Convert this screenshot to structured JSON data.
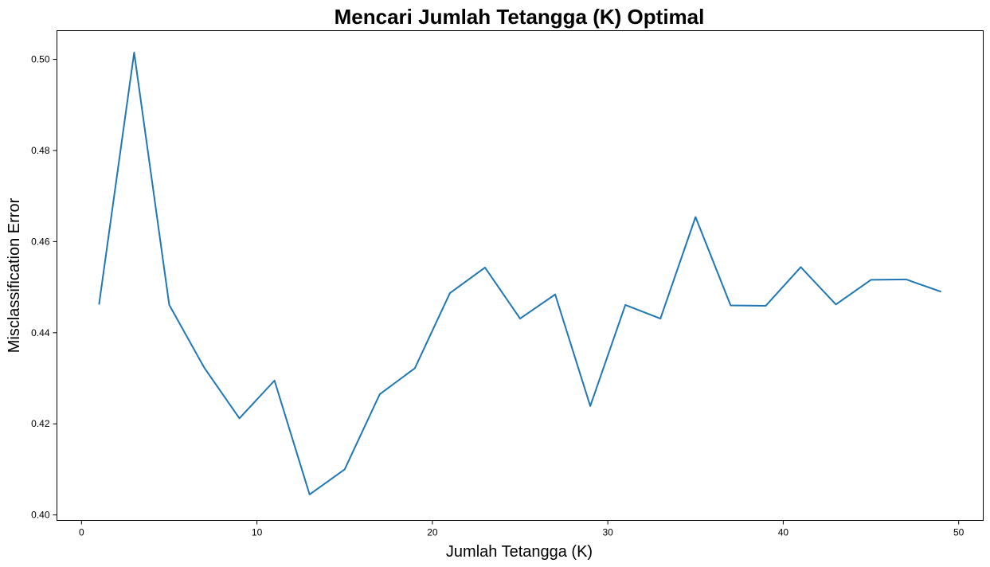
{
  "chart_data": {
    "type": "line",
    "title": "Mencari Jumlah Tetangga (K) Optimal",
    "xlabel": "Jumlah Tetangga (K)",
    "ylabel": "Misclassification Error",
    "xlim": [
      -1.4,
      51.4
    ],
    "ylim": [
      0.3988,
      0.5063
    ],
    "xticks": [
      0,
      10,
      20,
      30,
      40,
      50
    ],
    "yticks": [
      0.4,
      0.42,
      0.44,
      0.46,
      0.48,
      0.5
    ],
    "xtick_labels": [
      "0",
      "10",
      "20",
      "30",
      "40",
      "50"
    ],
    "ytick_labels": [
      "0.40",
      "0.42",
      "0.44",
      "0.46",
      "0.48",
      "0.50"
    ],
    "grid": false,
    "series": [
      {
        "color": "#1f77b4",
        "x": [
          1,
          3,
          5,
          7,
          9,
          11,
          13,
          15,
          17,
          19,
          21,
          23,
          25,
          27,
          29,
          31,
          33,
          35,
          37,
          39,
          41,
          43,
          45,
          47,
          49
        ],
        "values": [
          0.4462,
          0.5015,
          0.4461,
          0.4323,
          0.4212,
          0.4295,
          0.4045,
          0.41,
          0.4265,
          0.4322,
          0.4487,
          0.4543,
          0.4431,
          0.4484,
          0.4239,
          0.4461,
          0.4431,
          0.4654,
          0.446,
          0.4459,
          0.4544,
          0.4462,
          0.4516,
          0.4517,
          0.449
        ]
      }
    ]
  }
}
